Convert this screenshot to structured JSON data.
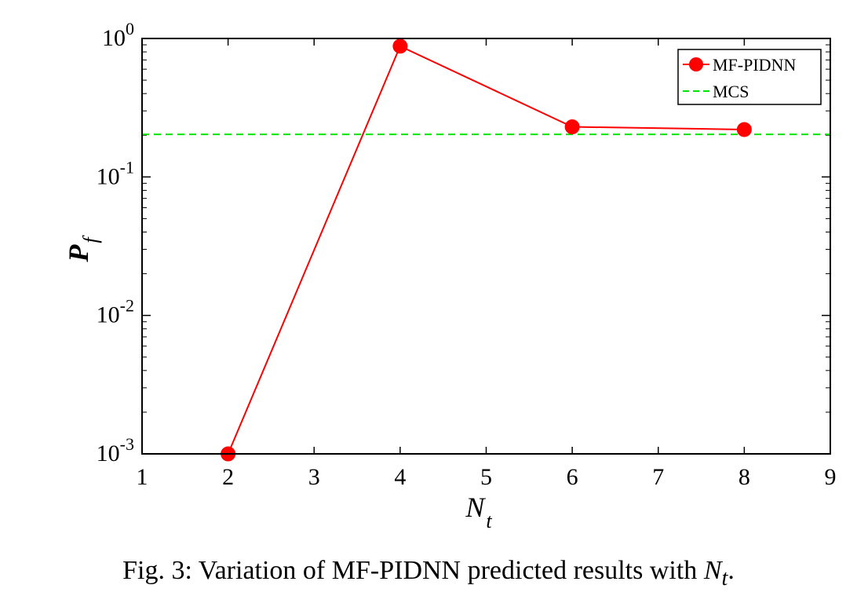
{
  "chart_data": {
    "type": "line",
    "yscale": "log",
    "xlim": [
      1,
      9
    ],
    "ylim": [
      0.001,
      1
    ],
    "xticks": [
      1,
      2,
      3,
      4,
      5,
      6,
      7,
      8,
      9
    ],
    "xtick_labels": [
      "1",
      "2",
      "3",
      "4",
      "5",
      "6",
      "7",
      "8",
      "9"
    ],
    "yticks": [
      {
        "value": 0.001,
        "base": "10",
        "exp": "-3"
      },
      {
        "value": 0.01,
        "base": "10",
        "exp": "-2"
      },
      {
        "value": 0.1,
        "base": "10",
        "exp": "-1"
      },
      {
        "value": 1,
        "base": "10",
        "exp": "0"
      }
    ],
    "xlabel": {
      "main": "N",
      "sub": "t"
    },
    "ylabel": {
      "main": "P",
      "sub": "f"
    },
    "legend_position": "top-right",
    "series": [
      {
        "name": "MF-PIDNN",
        "color": "#ff0000",
        "style": "solid line with filled circle markers",
        "x": [
          2,
          4,
          6,
          8
        ],
        "y": [
          0.001,
          0.88,
          0.23,
          0.22
        ]
      },
      {
        "name": "MCS",
        "color": "#00e600",
        "style": "dashed horizontal line",
        "y": 0.203
      }
    ]
  },
  "caption": {
    "prefix": "Fig. 3: Variation of MF-PIDNN predicted results with ",
    "math_main": "N",
    "math_sub": "t",
    "suffix": "."
  }
}
